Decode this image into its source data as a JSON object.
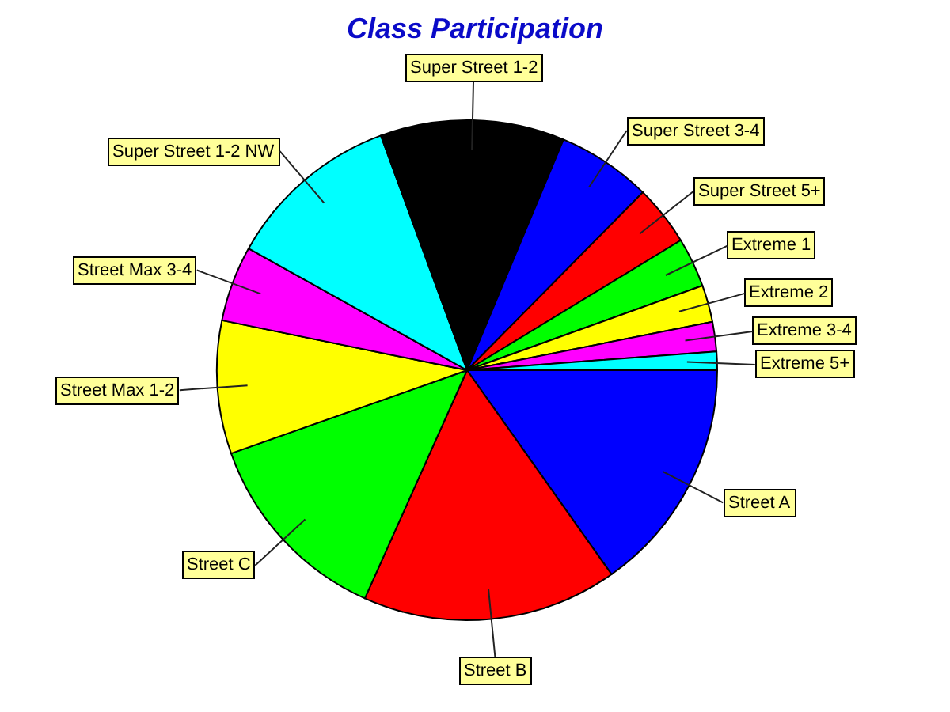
{
  "chart_data": {
    "type": "pie",
    "title": "Class Participation",
    "categories": [
      "Street A",
      "Street B",
      "Street C",
      "Street Max 1-2",
      "Street Max 3-4",
      "Super Street 1-2 NW",
      "Super Street 1-2",
      "Super Street 3-4",
      "Super Street 5+",
      "Extreme 1",
      "Extreme 2",
      "Extreme 3-4",
      "Extreme 5+"
    ],
    "values": [
      15.2,
      16.5,
      12.9,
      8.6,
      4.9,
      11.3,
      11.9,
      6.1,
      3.9,
      3.2,
      2.4,
      1.9,
      1.2
    ],
    "colors": [
      "#0000ff",
      "#ff0000",
      "#00ff00",
      "#ffff00",
      "#ff00ff",
      "#00ffff",
      "#000000",
      "#0000ff",
      "#ff0000",
      "#00ff00",
      "#ffff00",
      "#ff00ff",
      "#00ffff"
    ]
  }
}
